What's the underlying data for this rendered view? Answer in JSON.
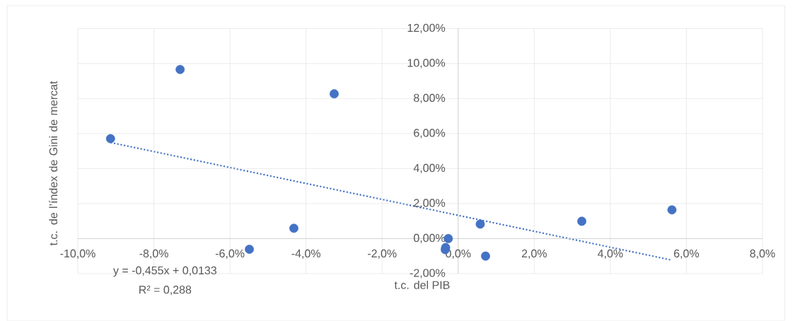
{
  "chart_data": {
    "type": "scatter",
    "xlabel": "t.c. del PIB",
    "ylabel": "t.c. de l’índex de Gini de mercat",
    "annotations": [
      "y = -0,455x + 0,0133",
      "R² = 0,288"
    ],
    "xlim": [
      -0.1,
      0.08
    ],
    "xticks": [
      {
        "value": -0.1,
        "label": "-10,0%"
      },
      {
        "value": -0.08,
        "label": "-8,0%"
      },
      {
        "value": -0.06,
        "label": "-6,0%"
      },
      {
        "value": -0.04,
        "label": "-4,0%"
      },
      {
        "value": -0.02,
        "label": "-2,0%"
      },
      {
        "value": 0,
        "label": "0,0%"
      },
      {
        "value": 0.02,
        "label": "2,0%"
      },
      {
        "value": 0.04,
        "label": "4,0%"
      },
      {
        "value": 0.06,
        "label": "6,0%"
      },
      {
        "value": 0.08,
        "label": "8,0%"
      }
    ],
    "ylim": [
      -0.02,
      0.12
    ],
    "yticks": [
      {
        "value": -0.02,
        "label": "-2,00%"
      },
      {
        "value": 0,
        "label": "0,00%"
      },
      {
        "value": 0.02,
        "label": "2,00%"
      },
      {
        "value": 0.04,
        "label": "4,00%"
      },
      {
        "value": 0.06,
        "label": "6,00%"
      },
      {
        "value": 0.08,
        "label": "8,00%"
      },
      {
        "value": 0.1,
        "label": "10,00%"
      },
      {
        "value": 0.12,
        "label": "12,00%"
      }
    ],
    "grid": true,
    "marker": "circle",
    "series": [
      {
        "color": "#4472c4",
        "x": [
          -0.0914,
          -0.0731,
          -0.0326,
          -0.0549,
          -0.0432,
          -0.0026,
          -0.0033,
          -0.0034,
          0.0058,
          0.0072,
          0.0325,
          0.0562
        ],
        "values": [
          0.0571,
          0.0966,
          0.0827,
          -0.0061,
          0.0059,
          0.0,
          -0.0051,
          -0.0063,
          0.0083,
          -0.01,
          0.0099,
          0.0164
        ]
      },
      {
        "type": "line",
        "color": "#4472c4",
        "line_style": "dotted",
        "marker": "none",
        "x": [
          -0.0914,
          0.0562
        ],
        "values": [
          0.0549,
          -0.0123
        ]
      }
    ]
  }
}
